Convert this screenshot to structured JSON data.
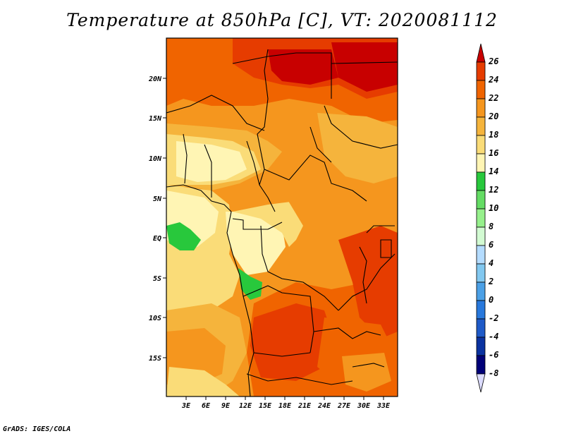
{
  "title": "Temperature at 850hPa [C], VT: 2020081112",
  "credit": "GrADS: IGES/COLA",
  "map": {
    "lat_ticks": [
      "20N",
      "15N",
      "10N",
      "5N",
      "EQ",
      "5S",
      "10S",
      "15S"
    ],
    "lon_ticks": [
      "3E",
      "6E",
      "9E",
      "12E",
      "15E",
      "18E",
      "21E",
      "24E",
      "27E",
      "30E",
      "33E"
    ]
  },
  "colorbar": {
    "labels": [
      "26",
      "24",
      "22",
      "20",
      "18",
      "16",
      "14",
      "12",
      "10",
      "8",
      "6",
      "4",
      "2",
      "0",
      "-2",
      "-4",
      "-6",
      "-8"
    ],
    "colors": [
      "#c80000",
      "#e63c00",
      "#f06400",
      "#f5961e",
      "#f5b43c",
      "#fadc78",
      "#fff5b4",
      "#28c83c",
      "#64dc64",
      "#96f08c",
      "#d2fad2",
      "#b4dcff",
      "#82c8f0",
      "#4ba0e6",
      "#2878dc",
      "#1e5ac8",
      "#0a32a0",
      "#000078",
      "#dcdcff"
    ]
  }
}
